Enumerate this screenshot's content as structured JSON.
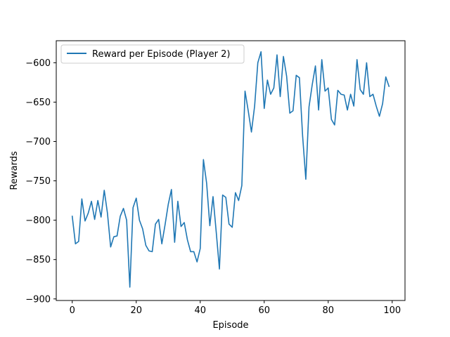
{
  "chart_data": {
    "type": "line",
    "title": "",
    "xlabel": "Episode",
    "ylabel": "Rewards",
    "xlim": [
      -5,
      104
    ],
    "ylim": [
      -902,
      -572
    ],
    "xticks": [
      0,
      20,
      40,
      60,
      80,
      100
    ],
    "yticks": [
      -900,
      -850,
      -800,
      -750,
      -700,
      -650,
      -600
    ],
    "legend": "upper-left",
    "grid": false,
    "series": [
      {
        "name": "Reward per Episode (Player 2)",
        "color": "#1f77b4",
        "x": [
          0,
          1,
          2,
          3,
          4,
          5,
          6,
          7,
          8,
          9,
          10,
          11,
          12,
          13,
          14,
          15,
          16,
          17,
          18,
          19,
          20,
          21,
          22,
          23,
          24,
          25,
          26,
          27,
          28,
          29,
          30,
          31,
          32,
          33,
          34,
          35,
          36,
          37,
          38,
          39,
          40,
          41,
          42,
          43,
          44,
          45,
          46,
          47,
          48,
          49,
          50,
          51,
          52,
          53,
          54,
          55,
          56,
          57,
          58,
          59,
          60,
          61,
          62,
          63,
          64,
          65,
          66,
          67,
          68,
          69,
          70,
          71,
          72,
          73,
          74,
          75,
          76,
          77,
          78,
          79,
          80,
          81,
          82,
          83,
          84,
          85,
          86,
          87,
          88,
          89,
          90,
          91,
          92,
          93,
          94,
          95,
          96,
          97,
          98,
          99
        ],
        "values": [
          -795,
          -830,
          -827,
          -773,
          -801,
          -791,
          -776,
          -799,
          -775,
          -796,
          -762,
          -791,
          -834,
          -821,
          -820,
          -795,
          -785,
          -800,
          -885,
          -784,
          -772,
          -800,
          -811,
          -832,
          -839,
          -840,
          -805,
          -799,
          -830,
          -806,
          -780,
          -761,
          -828,
          -776,
          -808,
          -803,
          -825,
          -840,
          -840,
          -853,
          -836,
          -723,
          -753,
          -807,
          -770,
          -815,
          -862,
          -768,
          -771,
          -805,
          -809,
          -765,
          -775,
          -756,
          -636,
          -661,
          -688,
          -655,
          -600,
          -586,
          -658,
          -622,
          -640,
          -632,
          -590,
          -643,
          -592,
          -617,
          -664,
          -661,
          -616,
          -619,
          -693,
          -748,
          -656,
          -628,
          -604,
          -660,
          -596,
          -636,
          -632,
          -672,
          -679,
          -635,
          -640,
          -641,
          -660,
          -640,
          -655,
          -596,
          -634,
          -640,
          -600,
          -643,
          -640,
          -655,
          -668,
          -652,
          -618,
          -630
        ]
      }
    ]
  }
}
